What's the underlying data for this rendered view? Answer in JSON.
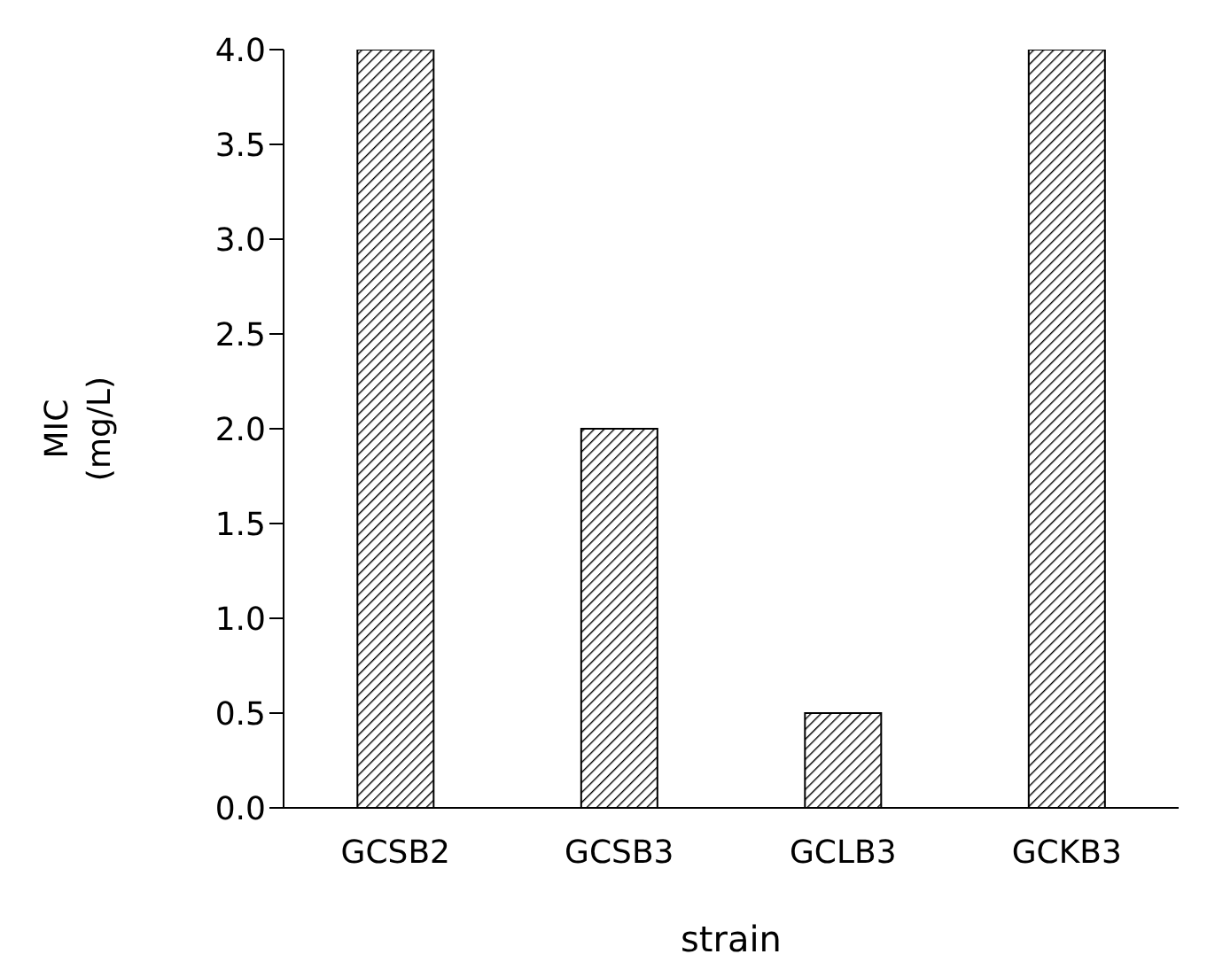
{
  "chart_data": {
    "type": "bar",
    "xlabel": "strain",
    "ylabel": "MIC (mg/L)",
    "categories": [
      "GCSB2",
      "GCSB3",
      "GCLB3",
      "GCKB3"
    ],
    "values": [
      4.0,
      2.0,
      0.5,
      4.0
    ],
    "color": "#000000",
    "ylim": [
      0,
      4
    ],
    "yticks": [
      {
        "value": 0,
        "label": "0.0"
      },
      {
        "value": 0.5,
        "label": "0.5"
      },
      {
        "value": 1,
        "label": "1.0"
      },
      {
        "value": 1.5,
        "label": "1.5"
      },
      {
        "value": 2,
        "label": "2.0"
      },
      {
        "value": 2.5,
        "label": "2.5"
      },
      {
        "value": 3,
        "label": "3.0"
      },
      {
        "value": 3.5,
        "label": "3.5"
      },
      {
        "value": 4,
        "label": "4.0"
      }
    ],
    "grid": false,
    "legend": false
  }
}
